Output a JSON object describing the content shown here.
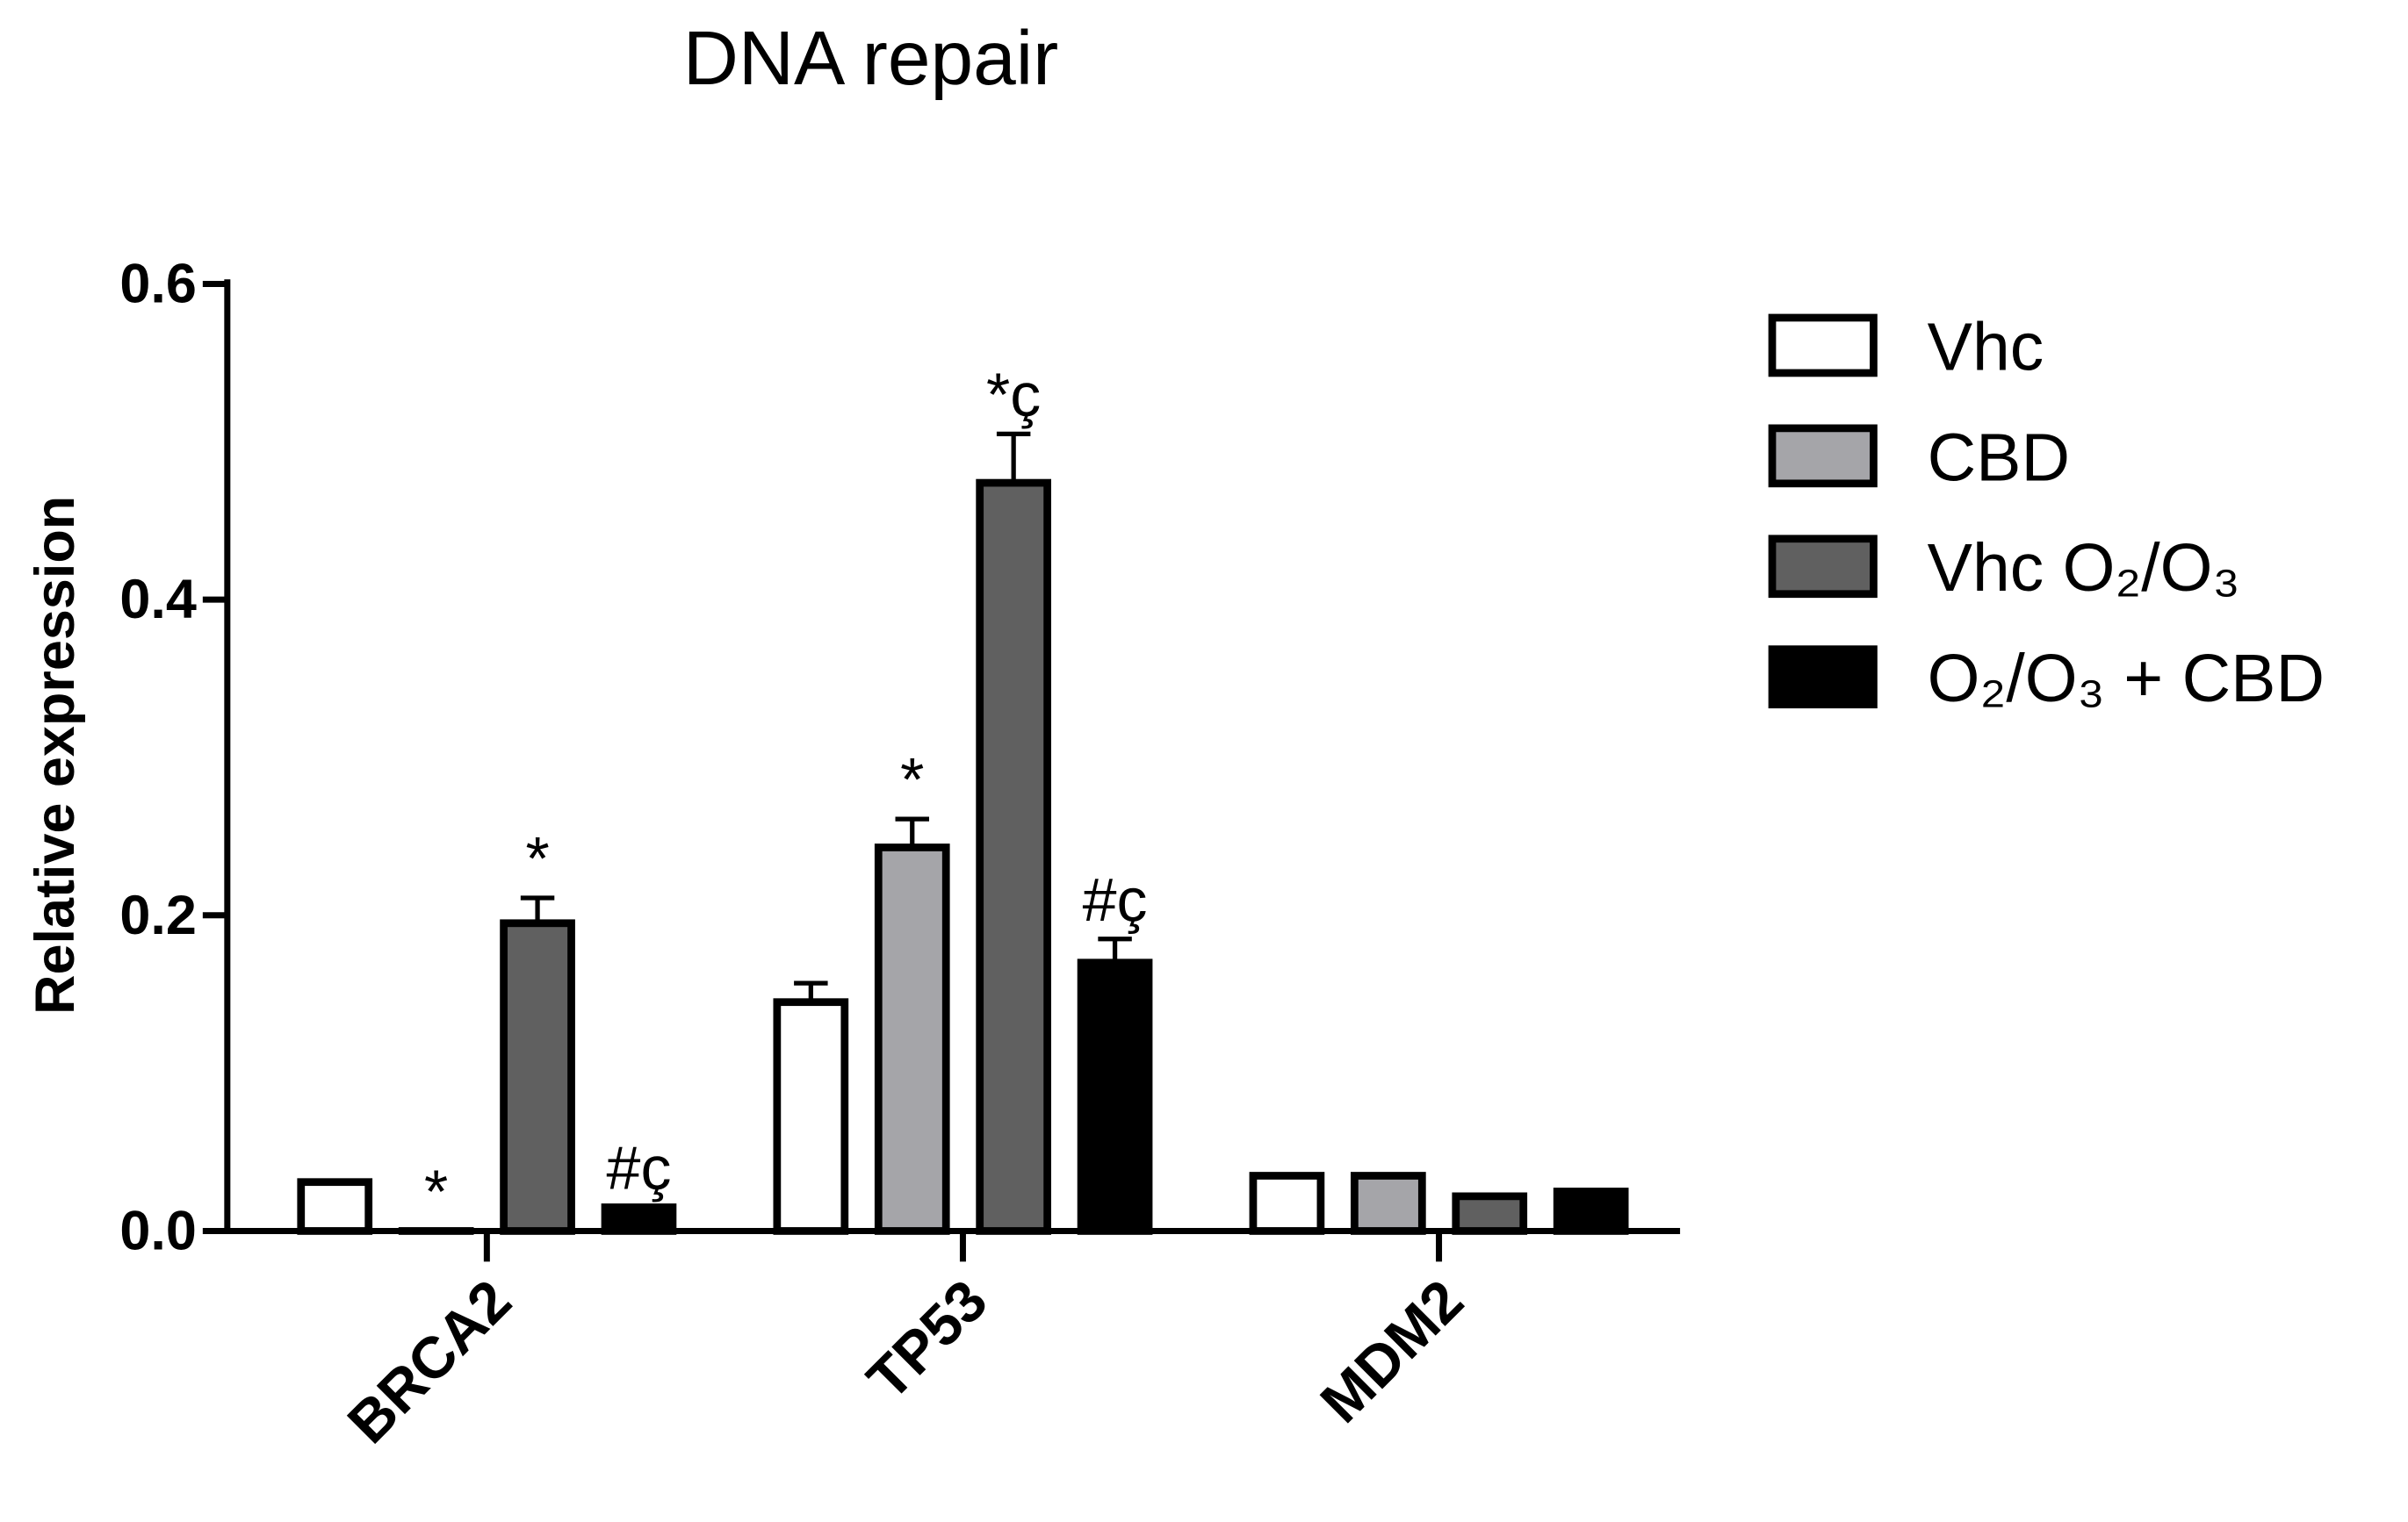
{
  "chart_data": {
    "type": "bar",
    "title": "DNA repair",
    "y_label": "Relative expression",
    "categories": [
      "BRCA2",
      "TP53",
      "MDM2"
    ],
    "ylim": [
      0,
      0.6
    ],
    "yticks": [
      {
        "value": 0,
        "label": "0.0"
      },
      0.2,
      0.4,
      0.6
    ],
    "series": [
      {
        "name": "Vhc",
        "color": "#ffffff",
        "values": [
          0.031,
          0.145,
          0.035
        ],
        "errors": [
          null,
          0.012,
          null
        ],
        "annotations": [
          null,
          null,
          null
        ]
      },
      {
        "name": "CBD",
        "color": "#a5a5a9",
        "values": [
          0,
          0.243,
          0.035
        ],
        "errors": [
          null,
          0.018,
          null
        ],
        "annotations": [
          "*",
          "*",
          null
        ]
      },
      {
        "name": "Vhc O₂/O₃",
        "color": "#606060",
        "values": [
          0.195,
          0.474,
          0.022
        ],
        "errors": [
          0.016,
          0.031,
          null
        ],
        "annotations": [
          "*",
          "*ç",
          null
        ]
      },
      {
        "name": "O₂/O₃ + CBD",
        "color": "#000000",
        "values": [
          0.015,
          0.17,
          0.025
        ],
        "errors": [
          null,
          0.015,
          null
        ],
        "annotations": [
          "#ç",
          "#ç",
          null
        ]
      }
    ]
  }
}
